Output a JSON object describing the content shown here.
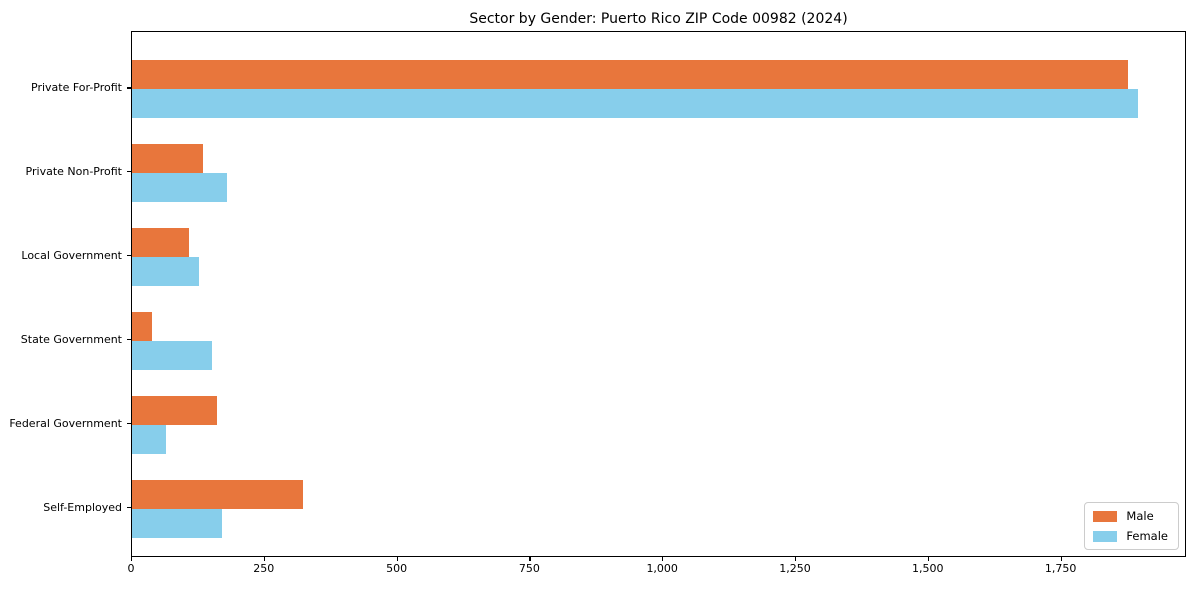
{
  "chart_data": {
    "type": "bar",
    "orientation": "horizontal",
    "title": "Sector by Gender: Puerto Rico ZIP Code 00982 (2024)",
    "categories": [
      "Private For-Profit",
      "Private Non-Profit",
      "Local Government",
      "State Government",
      "Federal Government",
      "Self-Employed"
    ],
    "series": [
      {
        "name": "Male",
        "color": "#E8763C",
        "values": [
          1874,
          133,
          107,
          37,
          159,
          322
        ]
      },
      {
        "name": "Female",
        "color": "#87CEEB",
        "values": [
          1893,
          179,
          126,
          150,
          63,
          169
        ]
      }
    ],
    "xticks": [
      0,
      250,
      500,
      750,
      1000,
      1250,
      1500,
      1750
    ],
    "xtick_labels": [
      "0",
      "250",
      "500",
      "750",
      "1,000",
      "1,250",
      "1,500",
      "1,750"
    ],
    "xlabel": "",
    "ylabel": "",
    "xlim": [
      0,
      1986
    ],
    "grid": false,
    "legend_position": "lower right",
    "background_color": "#ffffff",
    "spine_color": "#000000"
  }
}
